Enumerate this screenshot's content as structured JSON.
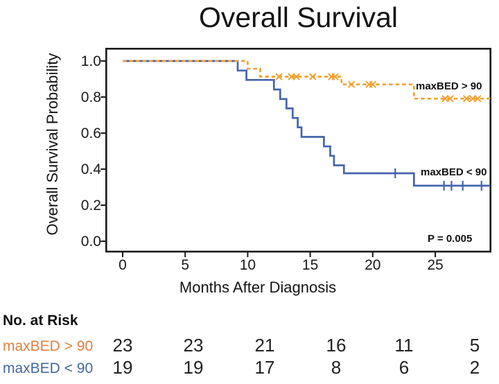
{
  "chart_data": {
    "type": "line",
    "subtype": "kaplan-meier-step",
    "title": "Overall Survival",
    "xlabel": "Months After Diagnosis",
    "ylabel": "Overall Survival Probability",
    "annotation": "P = 0.005",
    "grid": false,
    "legend_position": "inline-labels",
    "xlim": [
      0,
      29.4
    ],
    "ylim": [
      0.0,
      1.0
    ],
    "xticks": [
      {
        "label": "0",
        "v": 0
      },
      {
        "label": "5",
        "v": 5
      },
      {
        "label": "10",
        "v": 10
      },
      {
        "label": "15",
        "v": 15
      },
      {
        "label": "20",
        "v": 20
      },
      {
        "label": "25",
        "v": 25
      }
    ],
    "yticks": [
      {
        "label": "1.0",
        "v": 1.0
      },
      {
        "label": "0.8",
        "v": 0.8
      },
      {
        "label": "0.6",
        "v": 0.6
      },
      {
        "label": "0.4",
        "v": 0.4
      },
      {
        "label": "0.2",
        "v": 0.2
      },
      {
        "label": "0.0",
        "v": 0.0
      }
    ],
    "series": [
      {
        "name": "maxBED > 90",
        "color": "#F0A232",
        "style": "dashed",
        "censor_marker": "x-cross",
        "points": [
          [
            0,
            1.0
          ],
          [
            10.0,
            1.0
          ],
          [
            10.0,
            0.957
          ],
          [
            11.0,
            0.957
          ],
          [
            11.0,
            0.913
          ],
          [
            17.5,
            0.913
          ],
          [
            17.5,
            0.87
          ],
          [
            23.3,
            0.87
          ],
          [
            23.3,
            0.791
          ],
          [
            29.4,
            0.791
          ]
        ],
        "censors": [
          [
            12.5,
            0.913
          ],
          [
            13.5,
            0.913
          ],
          [
            13.9,
            0.913
          ],
          [
            15.2,
            0.913
          ],
          [
            16.7,
            0.913
          ],
          [
            17.0,
            0.913
          ],
          [
            18.3,
            0.87
          ],
          [
            19.7,
            0.87
          ],
          [
            20.0,
            0.87
          ],
          [
            25.8,
            0.791
          ],
          [
            26.2,
            0.791
          ],
          [
            27.5,
            0.791
          ],
          [
            28.0,
            0.791
          ],
          [
            28.4,
            0.791
          ]
        ]
      },
      {
        "name": "maxBED < 90",
        "color": "#4664AF",
        "style": "solid",
        "censor_marker": "plus-tick",
        "points": [
          [
            0,
            1.0
          ],
          [
            9.2,
            1.0
          ],
          [
            9.2,
            0.947
          ],
          [
            9.9,
            0.947
          ],
          [
            9.9,
            0.895
          ],
          [
            12.1,
            0.895
          ],
          [
            12.1,
            0.842
          ],
          [
            12.6,
            0.842
          ],
          [
            12.6,
            0.789
          ],
          [
            13.1,
            0.789
          ],
          [
            13.1,
            0.737
          ],
          [
            13.6,
            0.737
          ],
          [
            13.6,
            0.684
          ],
          [
            14.0,
            0.684
          ],
          [
            14.0,
            0.632
          ],
          [
            14.3,
            0.632
          ],
          [
            14.3,
            0.579
          ],
          [
            16.1,
            0.579
          ],
          [
            16.1,
            0.526
          ],
          [
            16.6,
            0.526
          ],
          [
            16.6,
            0.474
          ],
          [
            16.9,
            0.474
          ],
          [
            16.9,
            0.421
          ],
          [
            17.7,
            0.421
          ],
          [
            17.7,
            0.377
          ],
          [
            23.3,
            0.377
          ],
          [
            23.3,
            0.308
          ],
          [
            29.4,
            0.308
          ]
        ],
        "censors": [
          [
            21.8,
            0.377
          ],
          [
            25.7,
            0.308
          ],
          [
            26.3,
            0.308
          ],
          [
            27.2,
            0.308
          ],
          [
            28.7,
            0.308
          ]
        ]
      }
    ],
    "risk_table": {
      "title": "No. at Risk",
      "time_points": [
        0,
        5,
        10,
        15,
        20,
        25
      ],
      "rows": [
        {
          "label": "maxBED > 90",
          "color": "#E07F3E",
          "values": [
            "23",
            "23",
            "21",
            "16",
            "11",
            "5"
          ]
        },
        {
          "label": "maxBED < 90",
          "color": "#44689E",
          "values": [
            "19",
            "19",
            "17",
            "8",
            "6",
            "2"
          ]
        }
      ]
    }
  }
}
